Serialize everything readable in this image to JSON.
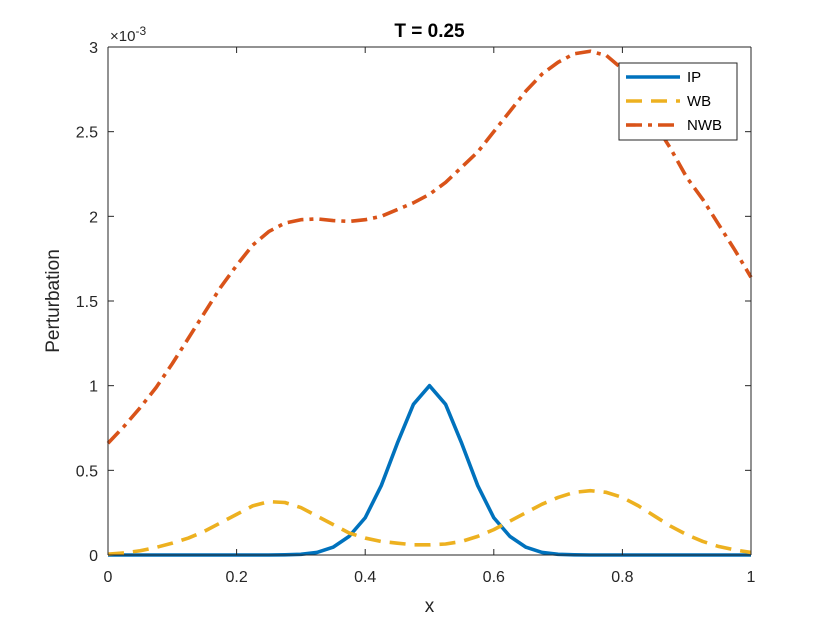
{
  "chart_data": {
    "type": "line",
    "title": "T = 0.25",
    "xlabel": "x",
    "ylabel": "Perturbation",
    "xlim": [
      0,
      1
    ],
    "ylim": [
      0,
      3
    ],
    "y_scale_label": "×10",
    "y_scale_exponent": "-3",
    "x_ticks": [
      "0",
      "0.2",
      "0.4",
      "0.6",
      "0.8",
      "1"
    ],
    "y_ticks": [
      "0",
      "0.5",
      "1",
      "1.5",
      "2",
      "2.5",
      "3"
    ],
    "grid": false,
    "legend_position": "top-right",
    "x": [
      0,
      0.025,
      0.05,
      0.075,
      0.1,
      0.125,
      0.15,
      0.175,
      0.2,
      0.225,
      0.25,
      0.275,
      0.3,
      0.325,
      0.35,
      0.375,
      0.4,
      0.425,
      0.45,
      0.475,
      0.5,
      0.525,
      0.55,
      0.575,
      0.6,
      0.625,
      0.65,
      0.675,
      0.7,
      0.725,
      0.75,
      0.775,
      0.8,
      0.825,
      0.85,
      0.875,
      0.9,
      0.925,
      0.95,
      0.975,
      1
    ],
    "series": [
      {
        "name": "IP",
        "color": "#0072BD",
        "style": "solid",
        "values": [
          0,
          0,
          0,
          0,
          0,
          0,
          0,
          0,
          0,
          0,
          0,
          0.001,
          0.004,
          0.015,
          0.046,
          0.11,
          0.22,
          0.41,
          0.66,
          0.89,
          1.0,
          0.89,
          0.66,
          0.41,
          0.22,
          0.11,
          0.046,
          0.015,
          0.004,
          0.001,
          0,
          0,
          0,
          0,
          0,
          0,
          0,
          0,
          0,
          0,
          0
        ]
      },
      {
        "name": "WB",
        "color": "#EDB120",
        "style": "dashed",
        "values": [
          0.005,
          0.012,
          0.025,
          0.045,
          0.07,
          0.1,
          0.14,
          0.19,
          0.24,
          0.29,
          0.315,
          0.31,
          0.28,
          0.23,
          0.18,
          0.13,
          0.1,
          0.08,
          0.07,
          0.06,
          0.06,
          0.065,
          0.08,
          0.11,
          0.15,
          0.2,
          0.25,
          0.3,
          0.34,
          0.37,
          0.38,
          0.37,
          0.34,
          0.29,
          0.23,
          0.17,
          0.12,
          0.08,
          0.05,
          0.03,
          0.015
        ]
      },
      {
        "name": "NWB",
        "color": "#D95319",
        "style": "dashdot",
        "values": [
          0.66,
          0.76,
          0.87,
          0.99,
          1.13,
          1.28,
          1.43,
          1.58,
          1.71,
          1.83,
          1.91,
          1.96,
          1.98,
          1.985,
          1.975,
          1.97,
          1.98,
          2.0,
          2.04,
          2.08,
          2.13,
          2.2,
          2.29,
          2.38,
          2.5,
          2.62,
          2.74,
          2.84,
          2.91,
          2.96,
          2.975,
          2.95,
          2.87,
          2.72,
          2.55,
          2.4,
          2.23,
          2.1,
          1.95,
          1.8,
          1.64
        ]
      }
    ]
  }
}
